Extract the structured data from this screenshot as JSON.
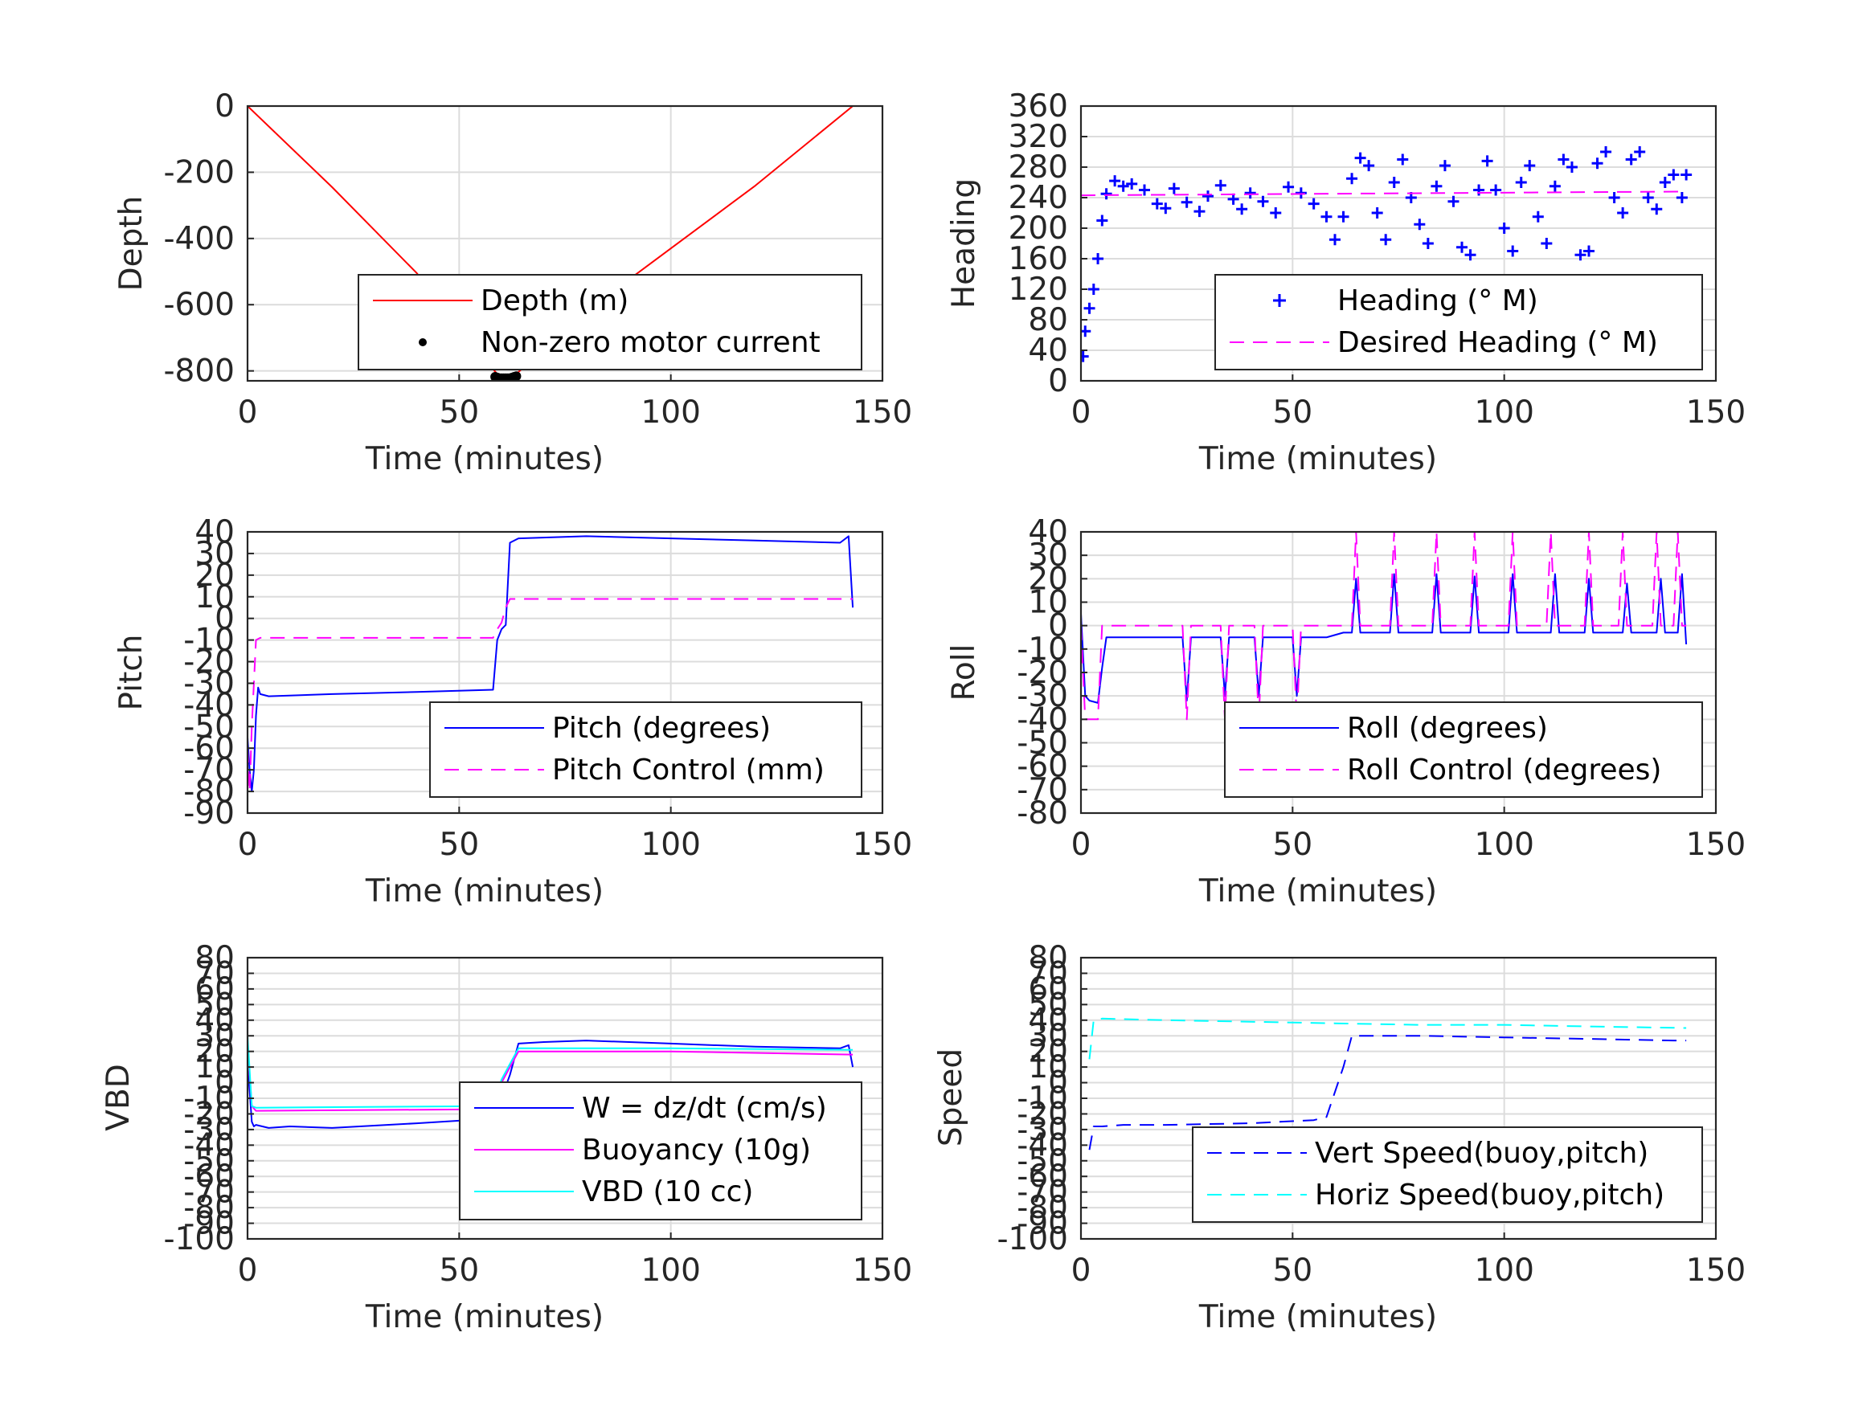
{
  "chart_data": [
    {
      "type": "line",
      "xlabel": "Time (minutes)",
      "ylabel": "Depth",
      "xlim": [
        0,
        150
      ],
      "ylim": [
        -830,
        0
      ],
      "xticks": [
        0,
        50,
        100,
        150
      ],
      "yticks": [
        0,
        -200,
        -400,
        -600,
        -800
      ],
      "grid": true,
      "legend_placement": "bottom-right",
      "series": [
        {
          "name": "Depth (m)",
          "color": "#ff0000",
          "style": "solid",
          "x": [
            0,
            20,
            40,
            59,
            60,
            62,
            63,
            80,
            100,
            120,
            143
          ],
          "y": [
            0,
            -245,
            -505,
            -810,
            -818,
            -820,
            -815,
            -620,
            -430,
            -240,
            0
          ]
        },
        {
          "name": "Non-zero motor current",
          "color": "#000000",
          "style": "dot",
          "x": [
            58.5,
            59,
            59.5,
            60,
            60.5,
            61,
            61.5,
            62,
            62.5,
            63,
            63.5
          ],
          "y": [
            -818,
            -820,
            -822,
            -822,
            -822,
            -822,
            -822,
            -822,
            -820,
            -818,
            -816
          ]
        }
      ]
    },
    {
      "type": "scatter",
      "xlabel": "Time (minutes)",
      "ylabel": "Heading",
      "xlim": [
        0,
        150
      ],
      "ylim": [
        0,
        360
      ],
      "xticks": [
        0,
        50,
        100,
        150
      ],
      "yticks": [
        0,
        40,
        80,
        120,
        160,
        200,
        240,
        280,
        320,
        360
      ],
      "grid": true,
      "legend_placement": "bottom-right",
      "series": [
        {
          "name": "Heading (° M)",
          "color": "#0000ff",
          "style": "plus",
          "x": [
            0.5,
            1,
            2,
            3,
            4,
            5,
            6,
            8,
            10,
            12,
            15,
            18,
            20,
            22,
            25,
            28,
            30,
            33,
            36,
            38,
            40,
            43,
            46,
            49,
            52,
            55,
            58,
            60,
            62,
            64,
            66,
            68,
            70,
            72,
            74,
            76,
            78,
            80,
            82,
            84,
            86,
            88,
            90,
            92,
            94,
            96,
            98,
            100,
            102,
            104,
            106,
            108,
            110,
            112,
            114,
            116,
            118,
            120,
            122,
            124,
            126,
            128,
            130,
            132,
            134,
            136,
            138,
            140,
            142,
            143
          ],
          "y": [
            32,
            65,
            95,
            120,
            160,
            210,
            245,
            262,
            255,
            258,
            250,
            232,
            226,
            252,
            234,
            222,
            242,
            256,
            238,
            225,
            246,
            235,
            220,
            254,
            246,
            232,
            215,
            185,
            215,
            265,
            292,
            282,
            220,
            185,
            260,
            290,
            240,
            205,
            180,
            255,
            282,
            235,
            175,
            165,
            250,
            288,
            250,
            200,
            170,
            260,
            282,
            215,
            180,
            255,
            290,
            280,
            165,
            170,
            285,
            300,
            240,
            220,
            290,
            300,
            240,
            225,
            260,
            270,
            240,
            270
          ]
        },
        {
          "name": "Desired Heading (° M)",
          "color": "#ff00ff",
          "style": "dashed",
          "x": [
            0,
            143
          ],
          "y": [
            243,
            248
          ]
        }
      ]
    },
    {
      "type": "line",
      "xlabel": "Time (minutes)",
      "ylabel": "Pitch",
      "xlim": [
        0,
        150
      ],
      "ylim": [
        -90,
        40
      ],
      "xticks": [
        0,
        50,
        100,
        150
      ],
      "yticks": [
        -90,
        -80,
        -70,
        -60,
        -50,
        -40,
        -30,
        -20,
        -10,
        0,
        10,
        20,
        30,
        40
      ],
      "grid": true,
      "legend_placement": "bottom-right",
      "series": [
        {
          "name": "Pitch (degrees)",
          "color": "#0000ff",
          "style": "solid",
          "x": [
            0,
            0.5,
            1,
            1.5,
            2,
            2.5,
            3,
            5,
            20,
            40,
            58,
            59,
            60,
            61,
            62,
            64,
            80,
            100,
            120,
            140,
            142,
            143
          ],
          "y": [
            -55,
            -70,
            -80,
            -70,
            -45,
            -32,
            -35,
            -36,
            -35,
            -34,
            -33,
            -10,
            -5,
            -3,
            35,
            37,
            38,
            37,
            36,
            35,
            38,
            5
          ]
        },
        {
          "name": "Pitch Control (mm)",
          "color": "#ff00ff",
          "style": "dashed",
          "x": [
            0,
            0.5,
            1,
            1.5,
            2,
            3,
            58,
            59,
            60,
            61,
            62,
            143
          ],
          "y": [
            -60,
            -80,
            -50,
            -30,
            -10,
            -9,
            -9,
            -5,
            -2,
            5,
            9,
            9
          ]
        }
      ]
    },
    {
      "type": "line",
      "xlabel": "Time (minutes)",
      "ylabel": "Roll",
      "xlim": [
        0,
        150
      ],
      "ylim": [
        -80,
        40
      ],
      "xticks": [
        0,
        50,
        100,
        150
      ],
      "yticks": [
        -80,
        -70,
        -60,
        -50,
        -40,
        -30,
        -20,
        -10,
        0,
        10,
        20,
        30,
        40
      ],
      "grid": true,
      "legend_placement": "bottom-right",
      "series": [
        {
          "name": "Roll (degrees)",
          "color": "#0000ff",
          "style": "solid",
          "x": [
            0,
            1,
            2,
            4,
            5,
            6,
            10,
            24,
            25,
            26,
            27,
            33,
            34,
            35,
            41,
            42,
            43,
            50,
            51,
            52,
            58,
            62,
            64,
            65,
            66,
            67,
            72,
            73,
            74,
            75,
            76,
            82,
            83,
            84,
            85,
            86,
            91,
            92,
            93,
            94,
            95,
            100,
            101,
            102,
            103,
            104,
            110,
            111,
            112,
            113,
            114,
            118,
            119,
            120,
            121,
            122,
            127,
            128,
            129,
            130,
            131,
            135,
            136,
            137,
            138,
            139,
            141,
            142,
            143
          ],
          "y": [
            5,
            -30,
            -32,
            -33,
            -18,
            -5,
            -5,
            -5,
            -32,
            -5,
            -5,
            -5,
            -30,
            -5,
            -5,
            -30,
            -5,
            -5,
            -30,
            -5,
            -5,
            -3,
            -3,
            20,
            -3,
            -3,
            -3,
            -3,
            22,
            -3,
            -3,
            -3,
            -3,
            22,
            -3,
            -3,
            -3,
            -3,
            21,
            -3,
            -3,
            -3,
            -3,
            22,
            -3,
            -3,
            -3,
            -3,
            22,
            -3,
            -3,
            -3,
            -3,
            20,
            -3,
            -3,
            -3,
            -3,
            18,
            -3,
            -3,
            -3,
            -3,
            20,
            -3,
            -3,
            -3,
            22,
            -8
          ]
        },
        {
          "name": "Roll Control (degrees)",
          "color": "#ff00ff",
          "style": "dashed",
          "x": [
            0,
            1,
            2,
            4,
            5,
            6,
            24,
            25,
            26,
            33,
            34,
            35,
            41,
            42,
            43,
            50,
            51,
            52,
            64,
            65,
            66,
            73,
            74,
            75,
            83,
            84,
            85,
            92,
            93,
            94,
            101,
            102,
            103,
            110,
            111,
            112,
            119,
            120,
            121,
            127,
            128,
            129,
            135,
            136,
            137,
            140,
            141,
            142,
            143
          ],
          "y": [
            0,
            -40,
            -40,
            -40,
            0,
            0,
            0,
            -40,
            0,
            0,
            -40,
            0,
            0,
            -40,
            0,
            0,
            -40,
            0,
            0,
            40,
            0,
            0,
            40,
            0,
            0,
            40,
            0,
            0,
            40,
            0,
            0,
            40,
            0,
            0,
            40,
            0,
            0,
            40,
            0,
            0,
            40,
            0,
            0,
            40,
            0,
            0,
            40,
            0,
            0
          ]
        }
      ]
    },
    {
      "type": "line",
      "xlabel": "Time (minutes)",
      "ylabel": "VBD",
      "xlim": [
        0,
        150
      ],
      "ylim": [
        -100,
        80
      ],
      "xticks": [
        0,
        50,
        100,
        150
      ],
      "yticks": [
        -100,
        -90,
        -80,
        -70,
        -60,
        -50,
        -40,
        -30,
        -20,
        -10,
        0,
        10,
        20,
        30,
        40,
        50,
        60,
        70,
        80
      ],
      "grid": true,
      "legend_placement": "bottom-right",
      "series": [
        {
          "name": "W = dz/dt (cm/s)",
          "color": "#0000ff",
          "style": "solid",
          "x": [
            0,
            0.5,
            1,
            1.5,
            2,
            5,
            10,
            20,
            40,
            58,
            59,
            60,
            62,
            64,
            70,
            80,
            100,
            120,
            140,
            142,
            143
          ],
          "y": [
            10,
            -5,
            -25,
            -28,
            -27,
            -29,
            -28,
            -29,
            -26,
            -23,
            -18,
            -10,
            5,
            25,
            26,
            27,
            25,
            23,
            22,
            24,
            10
          ]
        },
        {
          "name": "Buoyancy (10g)",
          "color": "#ff00ff",
          "style": "solid",
          "x": [
            0,
            1,
            2,
            58,
            59,
            60,
            62,
            64,
            100,
            143
          ],
          "y": [
            25,
            -15,
            -18,
            -17,
            -10,
            0,
            10,
            20,
            20,
            18
          ]
        },
        {
          "name": "VBD (10 cc)",
          "color": "#00ffff",
          "style": "solid",
          "x": [
            0,
            1,
            2,
            58,
            59,
            60,
            62,
            64,
            100,
            143
          ],
          "y": [
            30,
            -15,
            -16,
            -15,
            -8,
            2,
            12,
            22,
            22,
            21
          ]
        }
      ]
    },
    {
      "type": "line",
      "xlabel": "Time (minutes)",
      "ylabel": "Speed",
      "xlim": [
        0,
        150
      ],
      "ylim": [
        -100,
        80
      ],
      "xticks": [
        0,
        50,
        100,
        150
      ],
      "yticks": [
        -100,
        -90,
        -80,
        -70,
        -60,
        -50,
        -40,
        -30,
        -20,
        -10,
        0,
        10,
        20,
        30,
        40,
        50,
        60,
        70,
        80
      ],
      "grid": true,
      "legend_placement": "bottom-right",
      "series": [
        {
          "name": "Vert Speed(buoy,pitch)",
          "color": "#0000ff",
          "style": "dashed",
          "x": [
            2,
            3,
            5,
            10,
            20,
            40,
            55,
            58,
            62,
            64,
            80,
            100,
            120,
            140,
            143
          ],
          "y": [
            -43,
            -28,
            -28,
            -27,
            -27,
            -26,
            -24,
            -22,
            10,
            30,
            30,
            29,
            28,
            27,
            27
          ]
        },
        {
          "name": "Horiz Speed(buoy,pitch)",
          "color": "#00ffff",
          "style": "dashed",
          "x": [
            2,
            3,
            5,
            20,
            40,
            60,
            80,
            100,
            120,
            143
          ],
          "y": [
            15,
            40,
            41,
            40,
            39,
            38,
            37,
            37,
            36,
            35
          ]
        }
      ]
    }
  ]
}
